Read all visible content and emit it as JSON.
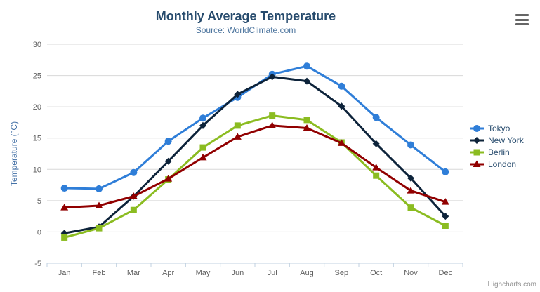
{
  "chart_data": {
    "type": "line",
    "title": "Monthly Average Temperature",
    "subtitle": "Source: WorldClimate.com",
    "xlabel": "",
    "ylabel": "Temperature (°C)",
    "categories": [
      "Jan",
      "Feb",
      "Mar",
      "Apr",
      "May",
      "Jun",
      "Jul",
      "Aug",
      "Sep",
      "Oct",
      "Nov",
      "Dec"
    ],
    "yticks": [
      -5,
      0,
      5,
      10,
      15,
      20,
      25,
      30
    ],
    "ylim": [
      -5,
      30
    ],
    "grid": true,
    "legend_position": "right",
    "series": [
      {
        "name": "Tokyo",
        "color": "#2f7ed8",
        "marker": "circle",
        "values": [
          7.0,
          6.9,
          9.5,
          14.5,
          18.2,
          21.5,
          25.2,
          26.5,
          23.3,
          18.3,
          13.9,
          9.6
        ]
      },
      {
        "name": "New York",
        "color": "#0d233a",
        "marker": "diamond",
        "values": [
          -0.2,
          0.8,
          5.7,
          11.3,
          17.0,
          22.0,
          24.8,
          24.1,
          20.1,
          14.1,
          8.6,
          2.5
        ]
      },
      {
        "name": "Berlin",
        "color": "#8bbc21",
        "marker": "square",
        "values": [
          -0.9,
          0.6,
          3.5,
          8.4,
          13.5,
          17.0,
          18.6,
          17.9,
          14.3,
          9.0,
          3.9,
          1.0
        ]
      },
      {
        "name": "London",
        "color": "#910000",
        "marker": "triangle",
        "values": [
          3.9,
          4.2,
          5.7,
          8.5,
          11.9,
          15.2,
          17.0,
          16.6,
          14.2,
          10.3,
          6.6,
          4.8
        ]
      }
    ]
  },
  "colors": {
    "title_text": "#274b6d",
    "subtitle_text": "#4d759e",
    "axis_label_text": "#606060",
    "axis_title_text": "#4572a7",
    "grid_line": "#d8d8d8",
    "axis_line": "#c0d0e0",
    "legend_text": "#274b6d",
    "credits_text": "#909090"
  },
  "credits": {
    "label": "Highcharts.com"
  },
  "context_menu": {
    "icon": "hamburger-icon"
  }
}
